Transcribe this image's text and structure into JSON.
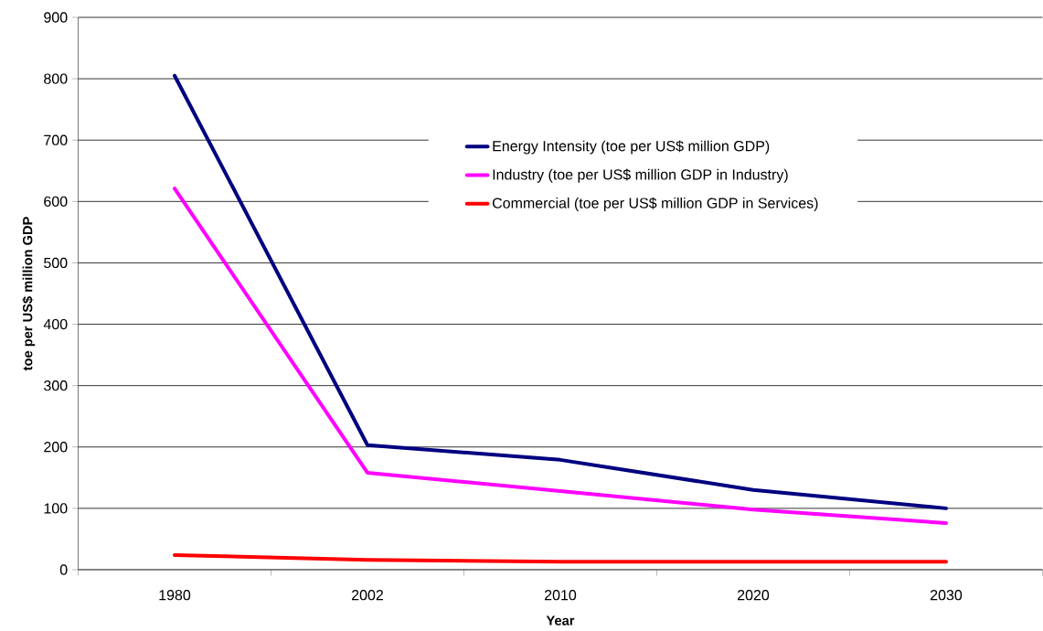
{
  "chart_data": {
    "type": "line",
    "xlabel": "Year",
    "ylabel": "toe per US$ million GDP",
    "categories": [
      "1980",
      "2002",
      "2010",
      "2020",
      "2030"
    ],
    "series": [
      {
        "name": "Energy Intensity (toe per US$ million GDP)",
        "color": "#000080",
        "values": [
          805,
          203,
          179,
          130,
          100
        ]
      },
      {
        "name": "Industry (toe per US$ million GDP in Industry)",
        "color": "#ff00ff",
        "values": [
          621,
          158,
          128,
          98,
          76
        ]
      },
      {
        "name": "Commercial (toe per US$ million GDP in Services)",
        "color": "#ff0000",
        "values": [
          24,
          16,
          13,
          13,
          13
        ]
      }
    ],
    "ylim": [
      0,
      900
    ],
    "yticks": [
      0,
      100,
      200,
      300,
      400,
      500,
      600,
      700,
      800,
      900
    ],
    "grid": "y",
    "legend": "top right",
    "marker": "none",
    "line_style": "solid"
  }
}
